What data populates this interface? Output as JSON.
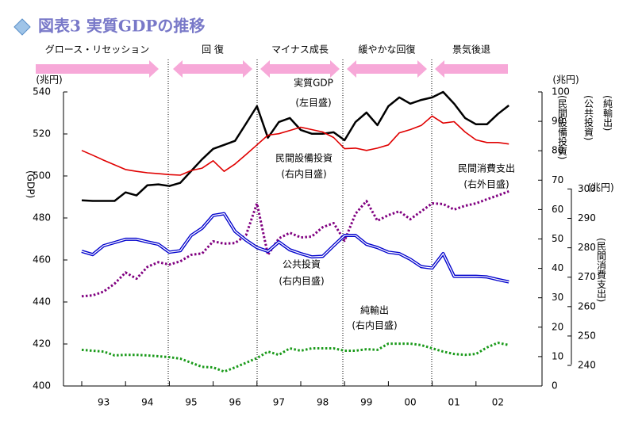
{
  "chart_data": {
    "type": "line",
    "title": "図表3 実質GDPの推移",
    "phases": [
      "グロース・リセッション",
      "回 復",
      "マイナス成長",
      "緩やかな回復",
      "景気後退"
    ],
    "y_unit": "(兆円)",
    "y2_unit": "(兆円)",
    "y3_unit": "(兆円)",
    "y_label": "(GDP)",
    "y2_labels": [
      "(民間設備投資)",
      "(公共投資)",
      "(純輸出)"
    ],
    "y3_label": "(民間消費支出)",
    "categories": [
      null,
      null,
      "93",
      null,
      null,
      null,
      "94",
      null,
      null,
      null,
      "95",
      null,
      null,
      null,
      "96",
      null,
      null,
      null,
      "97",
      null,
      null,
      null,
      "98",
      null,
      null,
      null,
      "99",
      null,
      null,
      null,
      "00",
      null,
      null,
      null,
      "01",
      null,
      null,
      null,
      "02",
      null
    ],
    "ylim": [
      400,
      540
    ],
    "yticks": [
      400,
      420,
      440,
      460,
      480,
      500,
      520,
      540
    ],
    "y2lim": [
      0,
      100
    ],
    "y2ticks": [
      0,
      10,
      20,
      30,
      40,
      50,
      60,
      70,
      80,
      90,
      100
    ],
    "y3lim": [
      233,
      333
    ],
    "y3ticks": [
      240,
      250,
      260,
      270,
      280,
      290,
      300
    ],
    "series": [
      {
        "name": "実質GDP",
        "note": "(左目盛)",
        "color": "#000000",
        "style": "solid",
        "values": [
          488.4,
          488.1,
          488.1,
          488.1,
          492.2,
          490.7,
          495.6,
          496.0,
          495.2,
          496.7,
          502.4,
          508.0,
          512.9,
          514.8,
          516.7,
          524.9,
          533.2,
          518.2,
          525.7,
          527.6,
          521.9,
          520.1,
          520.1,
          520.8,
          517.0,
          525.7,
          530.2,
          524.2,
          533.2,
          537.4,
          534.4,
          536.2,
          537.4,
          540.0,
          534.4,
          527.6,
          524.6,
          524.6,
          529.5,
          533.6
        ]
      },
      {
        "name": "民間設備投資",
        "note": "(右内目盛)",
        "axis": "y2",
        "color": "#e00000",
        "style": "solid",
        "values": [
          80.1,
          78.5,
          76.8,
          75.2,
          73.6,
          73.0,
          72.5,
          72.2,
          71.9,
          71.7,
          73.3,
          74.1,
          76.6,
          73.0,
          75.5,
          78.7,
          82.0,
          85.3,
          85.8,
          86.9,
          88.0,
          87.2,
          86.4,
          84.5,
          80.7,
          80.9,
          80.1,
          80.9,
          82.0,
          86.1,
          87.2,
          88.6,
          91.8,
          89.4,
          89.9,
          86.4,
          83.7,
          82.8,
          82.8,
          82.3
        ]
      },
      {
        "name": "民間消費支出",
        "note": "(右外目盛)",
        "axis": "y3",
        "color": "#800080",
        "style": "dotted",
        "values": [
          263.5,
          263.8,
          265.1,
          267.8,
          271.6,
          269.5,
          273.5,
          275.1,
          274.3,
          275.4,
          277.6,
          278.1,
          282.2,
          281.4,
          281.6,
          284.3,
          295.1,
          277.6,
          283.2,
          285.1,
          283.5,
          283.8,
          287.0,
          288.4,
          282.4,
          291.6,
          295.9,
          289.2,
          291.1,
          292.4,
          289.7,
          292.4,
          295.1,
          294.9,
          293.0,
          294.3,
          295.1,
          296.5,
          297.8,
          299.2
        ]
      },
      {
        "name": "公共投資",
        "note": "(右内目盛)",
        "axis": "y2",
        "color": "#0000cc",
        "style": "double",
        "values": [
          45.8,
          44.7,
          47.7,
          48.8,
          49.9,
          49.9,
          49.0,
          48.2,
          45.5,
          46.0,
          51.2,
          53.7,
          58.0,
          58.6,
          52.6,
          49.6,
          47.1,
          45.8,
          49.0,
          46.3,
          45.0,
          43.9,
          44.1,
          47.7,
          51.2,
          51.2,
          48.2,
          47.1,
          45.5,
          45.0,
          43.1,
          40.6,
          40.1,
          45.0,
          37.3,
          37.3,
          37.3,
          37.1,
          36.2,
          35.4
        ]
      },
      {
        "name": "純輸出",
        "note": "(右内目盛)",
        "axis": "y2",
        "color": "#1a9a1a",
        "style": "dotted",
        "values": [
          12.3,
          12.0,
          11.7,
          10.4,
          10.6,
          10.6,
          10.4,
          10.1,
          9.8,
          9.3,
          7.9,
          6.5,
          6.3,
          4.9,
          6.3,
          7.9,
          9.5,
          11.7,
          10.6,
          12.8,
          12.0,
          12.8,
          12.8,
          12.8,
          12.0,
          12.0,
          12.5,
          12.3,
          14.4,
          14.4,
          14.4,
          13.9,
          12.8,
          11.7,
          10.9,
          10.6,
          10.9,
          13.1,
          14.7,
          13.9
        ]
      }
    ]
  }
}
